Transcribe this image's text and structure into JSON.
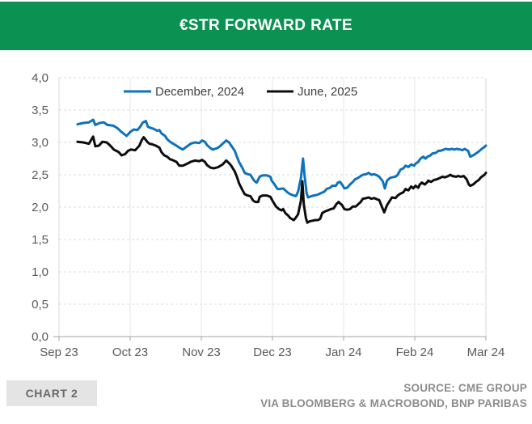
{
  "header": {
    "title": "€STR FORWARD RATE",
    "bg_color": "#0B9152",
    "text_color": "#FFFFFF"
  },
  "footer": {
    "chart_label": "CHART 2",
    "source_line1": "SOURCE: CME GROUP",
    "source_line2": "VIA BLOOMBERG & MACROBOND, BNP PARIBAS"
  },
  "chart_data": {
    "type": "line",
    "title": "€STR FORWARD RATE",
    "grid": true,
    "legend_position": "top-center",
    "x_axis": {
      "tick_labels": [
        "Sep 23",
        "Oct 23",
        "Nov 23",
        "Dec 23",
        "Jan 24",
        "Feb 24",
        "Mar 24"
      ],
      "tick_positions": [
        0,
        1,
        2,
        3,
        4,
        5,
        6
      ],
      "unit": "months-from-Sep-1-2023"
    },
    "y_axis": {
      "tick_labels": [
        "4,0",
        "3,5",
        "3,0",
        "2,5",
        "2,0",
        "1,5",
        "1,0",
        "0,5",
        "0,0"
      ],
      "min": 0,
      "max": 4,
      "step": 0.5
    },
    "series": [
      {
        "name": "December, 2024",
        "color": "#0E72BC",
        "points": [
          [
            0.26,
            3.28
          ],
          [
            0.34,
            3.3
          ],
          [
            0.42,
            3.31
          ],
          [
            0.48,
            3.35
          ],
          [
            0.51,
            3.27
          ],
          [
            0.57,
            3.3
          ],
          [
            0.63,
            3.31
          ],
          [
            0.68,
            3.27
          ],
          [
            0.76,
            3.26
          ],
          [
            0.82,
            3.22
          ],
          [
            0.88,
            3.16
          ],
          [
            0.95,
            3.1
          ],
          [
            1.0,
            3.16
          ],
          [
            1.05,
            3.2
          ],
          [
            1.1,
            3.19
          ],
          [
            1.14,
            3.24
          ],
          [
            1.18,
            3.31
          ],
          [
            1.22,
            3.33
          ],
          [
            1.25,
            3.24
          ],
          [
            1.3,
            3.22
          ],
          [
            1.33,
            3.21
          ],
          [
            1.38,
            3.18
          ],
          [
            1.41,
            3.19
          ],
          [
            1.44,
            3.14
          ],
          [
            1.49,
            3.1
          ],
          [
            1.52,
            3.05
          ],
          [
            1.56,
            3.01
          ],
          [
            1.59,
            2.99
          ],
          [
            1.65,
            2.95
          ],
          [
            1.69,
            2.92
          ],
          [
            1.74,
            2.89
          ],
          [
            1.8,
            2.94
          ],
          [
            1.85,
            2.98
          ],
          [
            1.91,
            3.0
          ],
          [
            1.97,
            2.99
          ],
          [
            2.01,
            3.03
          ],
          [
            2.05,
            3.01
          ],
          [
            2.08,
            2.96
          ],
          [
            2.13,
            2.91
          ],
          [
            2.16,
            2.89
          ],
          [
            2.22,
            2.91
          ],
          [
            2.25,
            2.93
          ],
          [
            2.31,
            2.99
          ],
          [
            2.35,
            3.03
          ],
          [
            2.39,
            3.0
          ],
          [
            2.42,
            2.95
          ],
          [
            2.47,
            2.87
          ],
          [
            2.5,
            2.78
          ],
          [
            2.53,
            2.7
          ],
          [
            2.58,
            2.6
          ],
          [
            2.61,
            2.53
          ],
          [
            2.65,
            2.51
          ],
          [
            2.69,
            2.5
          ],
          [
            2.73,
            2.43
          ],
          [
            2.76,
            2.39
          ],
          [
            2.78,
            2.38
          ],
          [
            2.82,
            2.47
          ],
          [
            2.86,
            2.49
          ],
          [
            2.92,
            2.49
          ],
          [
            2.97,
            2.47
          ],
          [
            2.99,
            2.41
          ],
          [
            3.03,
            2.35
          ],
          [
            3.07,
            2.28
          ],
          [
            3.1,
            2.28
          ],
          [
            3.15,
            2.29
          ],
          [
            3.18,
            2.26
          ],
          [
            3.22,
            2.22
          ],
          [
            3.25,
            2.2
          ],
          [
            3.3,
            2.18
          ],
          [
            3.33,
            2.17
          ],
          [
            3.36,
            2.24
          ],
          [
            3.4,
            2.45
          ],
          [
            3.43,
            2.75
          ],
          [
            3.45,
            2.5
          ],
          [
            3.48,
            2.22
          ],
          [
            3.5,
            2.15
          ],
          [
            3.55,
            2.17
          ],
          [
            3.58,
            2.18
          ],
          [
            3.63,
            2.19
          ],
          [
            3.65,
            2.2
          ],
          [
            3.69,
            2.22
          ],
          [
            3.73,
            2.24
          ],
          [
            3.76,
            2.28
          ],
          [
            3.81,
            2.3
          ],
          [
            3.84,
            2.33
          ],
          [
            3.89,
            2.33
          ],
          [
            3.92,
            2.38
          ],
          [
            3.95,
            2.39
          ],
          [
            3.99,
            2.33
          ],
          [
            4.01,
            2.29
          ],
          [
            4.05,
            2.3
          ],
          [
            4.09,
            2.35
          ],
          [
            4.13,
            2.39
          ],
          [
            4.16,
            2.43
          ],
          [
            4.2,
            2.45
          ],
          [
            4.24,
            2.48
          ],
          [
            4.27,
            2.5
          ],
          [
            4.32,
            2.51
          ],
          [
            4.35,
            2.53
          ],
          [
            4.39,
            2.5
          ],
          [
            4.43,
            2.51
          ],
          [
            4.47,
            2.49
          ],
          [
            4.5,
            2.47
          ],
          [
            4.55,
            2.4
          ],
          [
            4.58,
            2.29
          ],
          [
            4.61,
            2.41
          ],
          [
            4.65,
            2.45
          ],
          [
            4.68,
            2.46
          ],
          [
            4.73,
            2.47
          ],
          [
            4.76,
            2.5
          ],
          [
            4.8,
            2.58
          ],
          [
            4.84,
            2.6
          ],
          [
            4.87,
            2.64
          ],
          [
            4.91,
            2.62
          ],
          [
            4.95,
            2.66
          ],
          [
            4.99,
            2.64
          ],
          [
            5.01,
            2.67
          ],
          [
            5.05,
            2.7
          ],
          [
            5.08,
            2.75
          ],
          [
            5.12,
            2.78
          ],
          [
            5.15,
            2.75
          ],
          [
            5.18,
            2.78
          ],
          [
            5.22,
            2.8
          ],
          [
            5.25,
            2.83
          ],
          [
            5.3,
            2.84
          ],
          [
            5.33,
            2.87
          ],
          [
            5.36,
            2.87
          ],
          [
            5.41,
            2.89
          ],
          [
            5.44,
            2.9
          ],
          [
            5.48,
            2.89
          ],
          [
            5.52,
            2.9
          ],
          [
            5.56,
            2.89
          ],
          [
            5.59,
            2.9
          ],
          [
            5.64,
            2.89
          ],
          [
            5.67,
            2.88
          ],
          [
            5.7,
            2.9
          ],
          [
            5.75,
            2.87
          ],
          [
            5.78,
            2.78
          ],
          [
            5.82,
            2.8
          ],
          [
            5.86,
            2.83
          ],
          [
            5.9,
            2.86
          ],
          [
            5.93,
            2.89
          ],
          [
            5.98,
            2.93
          ],
          [
            6.0,
            2.95
          ]
        ]
      },
      {
        "name": "June, 2025",
        "color": "#0D0D0D",
        "points": [
          [
            0.26,
            3.01
          ],
          [
            0.34,
            3.0
          ],
          [
            0.42,
            2.98
          ],
          [
            0.48,
            3.09
          ],
          [
            0.51,
            2.94
          ],
          [
            0.56,
            2.95
          ],
          [
            0.61,
            3.01
          ],
          [
            0.67,
            3.0
          ],
          [
            0.72,
            2.95
          ],
          [
            0.77,
            2.89
          ],
          [
            0.84,
            2.85
          ],
          [
            0.88,
            2.8
          ],
          [
            0.93,
            2.82
          ],
          [
            0.97,
            2.87
          ],
          [
            1.01,
            2.89
          ],
          [
            1.07,
            2.88
          ],
          [
            1.13,
            2.95
          ],
          [
            1.16,
            3.03
          ],
          [
            1.19,
            3.08
          ],
          [
            1.24,
            3.01
          ],
          [
            1.27,
            2.98
          ],
          [
            1.31,
            2.97
          ],
          [
            1.36,
            2.95
          ],
          [
            1.41,
            2.92
          ],
          [
            1.44,
            2.85
          ],
          [
            1.48,
            2.8
          ],
          [
            1.52,
            2.78
          ],
          [
            1.56,
            2.74
          ],
          [
            1.59,
            2.73
          ],
          [
            1.65,
            2.7
          ],
          [
            1.69,
            2.64
          ],
          [
            1.74,
            2.64
          ],
          [
            1.8,
            2.67
          ],
          [
            1.85,
            2.7
          ],
          [
            1.91,
            2.72
          ],
          [
            1.97,
            2.71
          ],
          [
            2.01,
            2.73
          ],
          [
            2.05,
            2.7
          ],
          [
            2.08,
            2.65
          ],
          [
            2.13,
            2.61
          ],
          [
            2.18,
            2.6
          ],
          [
            2.24,
            2.62
          ],
          [
            2.3,
            2.66
          ],
          [
            2.35,
            2.72
          ],
          [
            2.39,
            2.68
          ],
          [
            2.42,
            2.64
          ],
          [
            2.47,
            2.55
          ],
          [
            2.5,
            2.47
          ],
          [
            2.53,
            2.37
          ],
          [
            2.58,
            2.26
          ],
          [
            2.61,
            2.2
          ],
          [
            2.65,
            2.18
          ],
          [
            2.69,
            2.17
          ],
          [
            2.73,
            2.1
          ],
          [
            2.76,
            2.08
          ],
          [
            2.8,
            2.08
          ],
          [
            2.82,
            2.16
          ],
          [
            2.86,
            2.18
          ],
          [
            2.92,
            2.18
          ],
          [
            2.97,
            2.16
          ],
          [
            3.01,
            2.08
          ],
          [
            3.05,
            2.01
          ],
          [
            3.09,
            1.97
          ],
          [
            3.13,
            1.95
          ],
          [
            3.15,
            1.97
          ],
          [
            3.18,
            1.91
          ],
          [
            3.22,
            1.87
          ],
          [
            3.25,
            1.83
          ],
          [
            3.3,
            1.8
          ],
          [
            3.33,
            1.84
          ],
          [
            3.36,
            1.89
          ],
          [
            3.4,
            2.1
          ],
          [
            3.42,
            2.4
          ],
          [
            3.44,
            2.05
          ],
          [
            3.47,
            1.83
          ],
          [
            3.49,
            1.76
          ],
          [
            3.52,
            1.78
          ],
          [
            3.56,
            1.79
          ],
          [
            3.6,
            1.8
          ],
          [
            3.64,
            1.8
          ],
          [
            3.67,
            1.82
          ],
          [
            3.7,
            1.91
          ],
          [
            3.75,
            1.94
          ],
          [
            3.78,
            1.95
          ],
          [
            3.82,
            1.97
          ],
          [
            3.86,
            1.98
          ],
          [
            3.9,
            2.05
          ],
          [
            3.93,
            2.08
          ],
          [
            3.98,
            2.03
          ],
          [
            4.01,
            1.97
          ],
          [
            4.05,
            1.96
          ],
          [
            4.09,
            1.97
          ],
          [
            4.13,
            2.01
          ],
          [
            4.17,
            2.01
          ],
          [
            4.2,
            2.04
          ],
          [
            4.24,
            2.08
          ],
          [
            4.27,
            2.13
          ],
          [
            4.32,
            2.14
          ],
          [
            4.35,
            2.15
          ],
          [
            4.39,
            2.13
          ],
          [
            4.43,
            2.14
          ],
          [
            4.47,
            2.12
          ],
          [
            4.5,
            2.11
          ],
          [
            4.53,
            2.03
          ],
          [
            4.57,
            1.92
          ],
          [
            4.61,
            2.03
          ],
          [
            4.65,
            2.1
          ],
          [
            4.68,
            2.15
          ],
          [
            4.73,
            2.14
          ],
          [
            4.76,
            2.18
          ],
          [
            4.8,
            2.21
          ],
          [
            4.84,
            2.23
          ],
          [
            4.87,
            2.28
          ],
          [
            4.91,
            2.26
          ],
          [
            4.95,
            2.32
          ],
          [
            4.98,
            2.29
          ],
          [
            5.01,
            2.33
          ],
          [
            5.05,
            2.3
          ],
          [
            5.07,
            2.35
          ],
          [
            5.1,
            2.38
          ],
          [
            5.14,
            2.35
          ],
          [
            5.17,
            2.38
          ],
          [
            5.19,
            2.41
          ],
          [
            5.23,
            2.39
          ],
          [
            5.27,
            2.42
          ],
          [
            5.31,
            2.43
          ],
          [
            5.35,
            2.45
          ],
          [
            5.39,
            2.47
          ],
          [
            5.42,
            2.46
          ],
          [
            5.47,
            2.48
          ],
          [
            5.5,
            2.5
          ],
          [
            5.53,
            2.48
          ],
          [
            5.58,
            2.47
          ],
          [
            5.61,
            2.48
          ],
          [
            5.65,
            2.47
          ],
          [
            5.69,
            2.48
          ],
          [
            5.73,
            2.43
          ],
          [
            5.76,
            2.35
          ],
          [
            5.78,
            2.33
          ],
          [
            5.82,
            2.35
          ],
          [
            5.86,
            2.39
          ],
          [
            5.9,
            2.42
          ],
          [
            5.93,
            2.46
          ],
          [
            5.98,
            2.5
          ],
          [
            6.0,
            2.53
          ]
        ]
      }
    ]
  }
}
